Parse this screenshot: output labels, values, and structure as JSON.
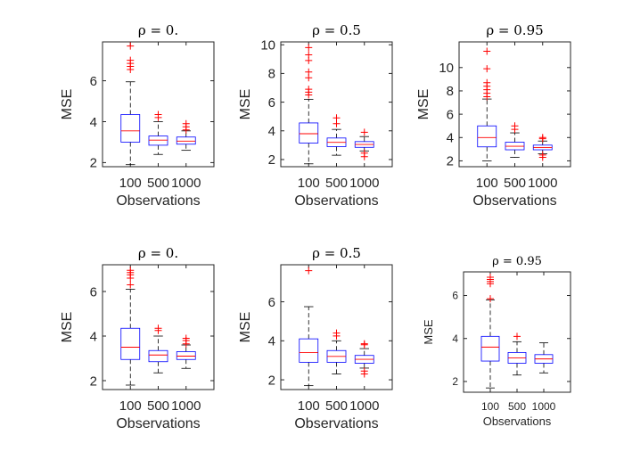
{
  "chart_data": [
    {
      "type": "box",
      "title": "ρ = 0.",
      "xlabel": "Observations",
      "ylabel": "MSE",
      "categories": [
        "100",
        "500",
        "1000"
      ],
      "ylim": [
        1.8,
        7.9
      ],
      "yticks": [
        "2",
        "4",
        "6"
      ],
      "yticks_values": [
        2,
        4,
        6
      ],
      "boxes": [
        {
          "whisker_low": 1.9,
          "q1": 3.0,
          "median": 3.55,
          "q3": 4.35,
          "whisker_high": 5.95,
          "outliers": [
            6.55,
            6.7,
            6.85,
            7.0,
            7.7
          ]
        },
        {
          "whisker_low": 2.4,
          "q1": 2.85,
          "median": 3.1,
          "q3": 3.3,
          "whisker_high": 4.0,
          "outliers": [
            4.2,
            4.35
          ]
        },
        {
          "whisker_low": 2.6,
          "q1": 2.9,
          "median": 3.05,
          "q3": 3.25,
          "whisker_high": 3.55,
          "outliers": [
            3.6,
            3.75,
            3.9
          ]
        }
      ]
    },
    {
      "type": "box",
      "title": "ρ = 0.5",
      "xlabel": "Observations",
      "ylabel": "MSE",
      "categories": [
        "100",
        "500",
        "1000"
      ],
      "ylim": [
        1.5,
        10.2
      ],
      "yticks": [
        "2",
        "4",
        "6",
        "8",
        "10"
      ],
      "yticks_values": [
        2,
        4,
        6,
        8,
        10
      ],
      "boxes": [
        {
          "whisker_low": 1.7,
          "q1": 3.15,
          "median": 3.8,
          "q3": 4.55,
          "whisker_high": 6.2,
          "outliers": [
            6.5,
            6.7,
            6.9,
            7.7,
            8.1,
            8.9,
            9.3,
            9.8
          ]
        },
        {
          "whisker_low": 2.3,
          "q1": 2.9,
          "median": 3.2,
          "q3": 3.5,
          "whisker_high": 4.1,
          "outliers": [
            4.5,
            4.9
          ]
        },
        {
          "whisker_low": 2.6,
          "q1": 2.85,
          "median": 3.05,
          "q3": 3.25,
          "whisker_high": 3.6,
          "outliers": [
            2.2,
            2.45,
            3.9
          ]
        }
      ]
    },
    {
      "type": "box",
      "title": "ρ = 0.95",
      "xlabel": "Observations",
      "ylabel": "MSE",
      "categories": [
        "100",
        "500",
        "1000"
      ],
      "ylim": [
        1.5,
        12.2
      ],
      "yticks": [
        "2",
        "4",
        "6",
        "8",
        "10"
      ],
      "yticks_values": [
        2,
        4,
        6,
        8,
        10
      ],
      "boxes": [
        {
          "whisker_low": 2.0,
          "q1": 3.2,
          "median": 4.0,
          "q3": 5.0,
          "whisker_high": 7.3,
          "outliers": [
            7.5,
            7.8,
            8.1,
            8.4,
            8.7,
            9.9,
            11.4
          ]
        },
        {
          "whisker_low": 2.3,
          "q1": 2.95,
          "median": 3.25,
          "q3": 3.6,
          "whisker_high": 4.4,
          "outliers": [
            4.7,
            5.0
          ]
        },
        {
          "whisker_low": 2.6,
          "q1": 2.95,
          "median": 3.15,
          "q3": 3.35,
          "whisker_high": 3.7,
          "outliers": [
            2.3,
            2.5,
            3.9,
            4.0
          ]
        }
      ]
    },
    {
      "type": "box",
      "title": "ρ = 0.",
      "xlabel": "Observations",
      "ylabel": "MSE",
      "categories": [
        "100",
        "500",
        "1000"
      ],
      "ylim": [
        1.6,
        7.2
      ],
      "yticks": [
        "2",
        "4",
        "6"
      ],
      "yticks_values": [
        2,
        4,
        6
      ],
      "boxes": [
        {
          "whisker_low": 1.8,
          "q1": 2.95,
          "median": 3.5,
          "q3": 4.35,
          "whisker_high": 6.1,
          "outliers": [
            6.3,
            6.6,
            6.75,
            6.85,
            6.95
          ]
        },
        {
          "whisker_low": 2.35,
          "q1": 2.85,
          "median": 3.15,
          "q3": 3.35,
          "whisker_high": 4.0,
          "outliers": [
            4.25,
            4.35
          ]
        },
        {
          "whisker_low": 2.55,
          "q1": 2.95,
          "median": 3.1,
          "q3": 3.3,
          "whisker_high": 3.6,
          "outliers": [
            3.65,
            3.8,
            3.9
          ]
        }
      ]
    },
    {
      "type": "box",
      "title": "ρ = 0.5",
      "xlabel": "Observations",
      "ylabel": "MSE",
      "categories": [
        "100",
        "500",
        "1000"
      ],
      "ylim": [
        1.5,
        7.9
      ],
      "yticks": [
        "2",
        "4",
        "6"
      ],
      "yticks_values": [
        2,
        4,
        6
      ],
      "boxes": [
        {
          "whisker_low": 1.7,
          "q1": 2.9,
          "median": 3.4,
          "q3": 4.1,
          "whisker_high": 5.75,
          "outliers": [
            7.6
          ]
        },
        {
          "whisker_low": 2.3,
          "q1": 2.9,
          "median": 3.2,
          "q3": 3.5,
          "whisker_high": 4.0,
          "outliers": [
            4.25,
            4.4
          ]
        },
        {
          "whisker_low": 2.6,
          "q1": 2.85,
          "median": 3.05,
          "q3": 3.25,
          "whisker_high": 3.6,
          "outliers": [
            2.3,
            2.45,
            3.8,
            3.85
          ]
        }
      ]
    },
    {
      "type": "box",
      "title": "ρ = 0.95",
      "xlabel": "Observations",
      "ylabel": "MSE",
      "categories": [
        "100",
        "500",
        "1000"
      ],
      "ylim": [
        1.5,
        7.1
      ],
      "yticks": [
        "2",
        "4",
        "6"
      ],
      "yticks_values": [
        2,
        4,
        6
      ],
      "boxes": [
        {
          "whisker_low": 1.7,
          "q1": 2.95,
          "median": 3.6,
          "q3": 4.1,
          "whisker_high": 5.8,
          "outliers": [
            5.85,
            6.55,
            6.65,
            6.75,
            6.85
          ]
        },
        {
          "whisker_low": 2.3,
          "q1": 2.85,
          "median": 3.1,
          "q3": 3.35,
          "whisker_high": 3.85,
          "outliers": [
            4.1
          ]
        },
        {
          "whisker_low": 2.4,
          "q1": 2.85,
          "median": 3.05,
          "q3": 3.25,
          "whisker_high": 3.8,
          "outliers": []
        }
      ]
    }
  ],
  "colors": {
    "box": "#0000ff",
    "median": "#ff0000",
    "outlier": "#ff0000",
    "whisker": "#000000",
    "axes": "#262626"
  }
}
